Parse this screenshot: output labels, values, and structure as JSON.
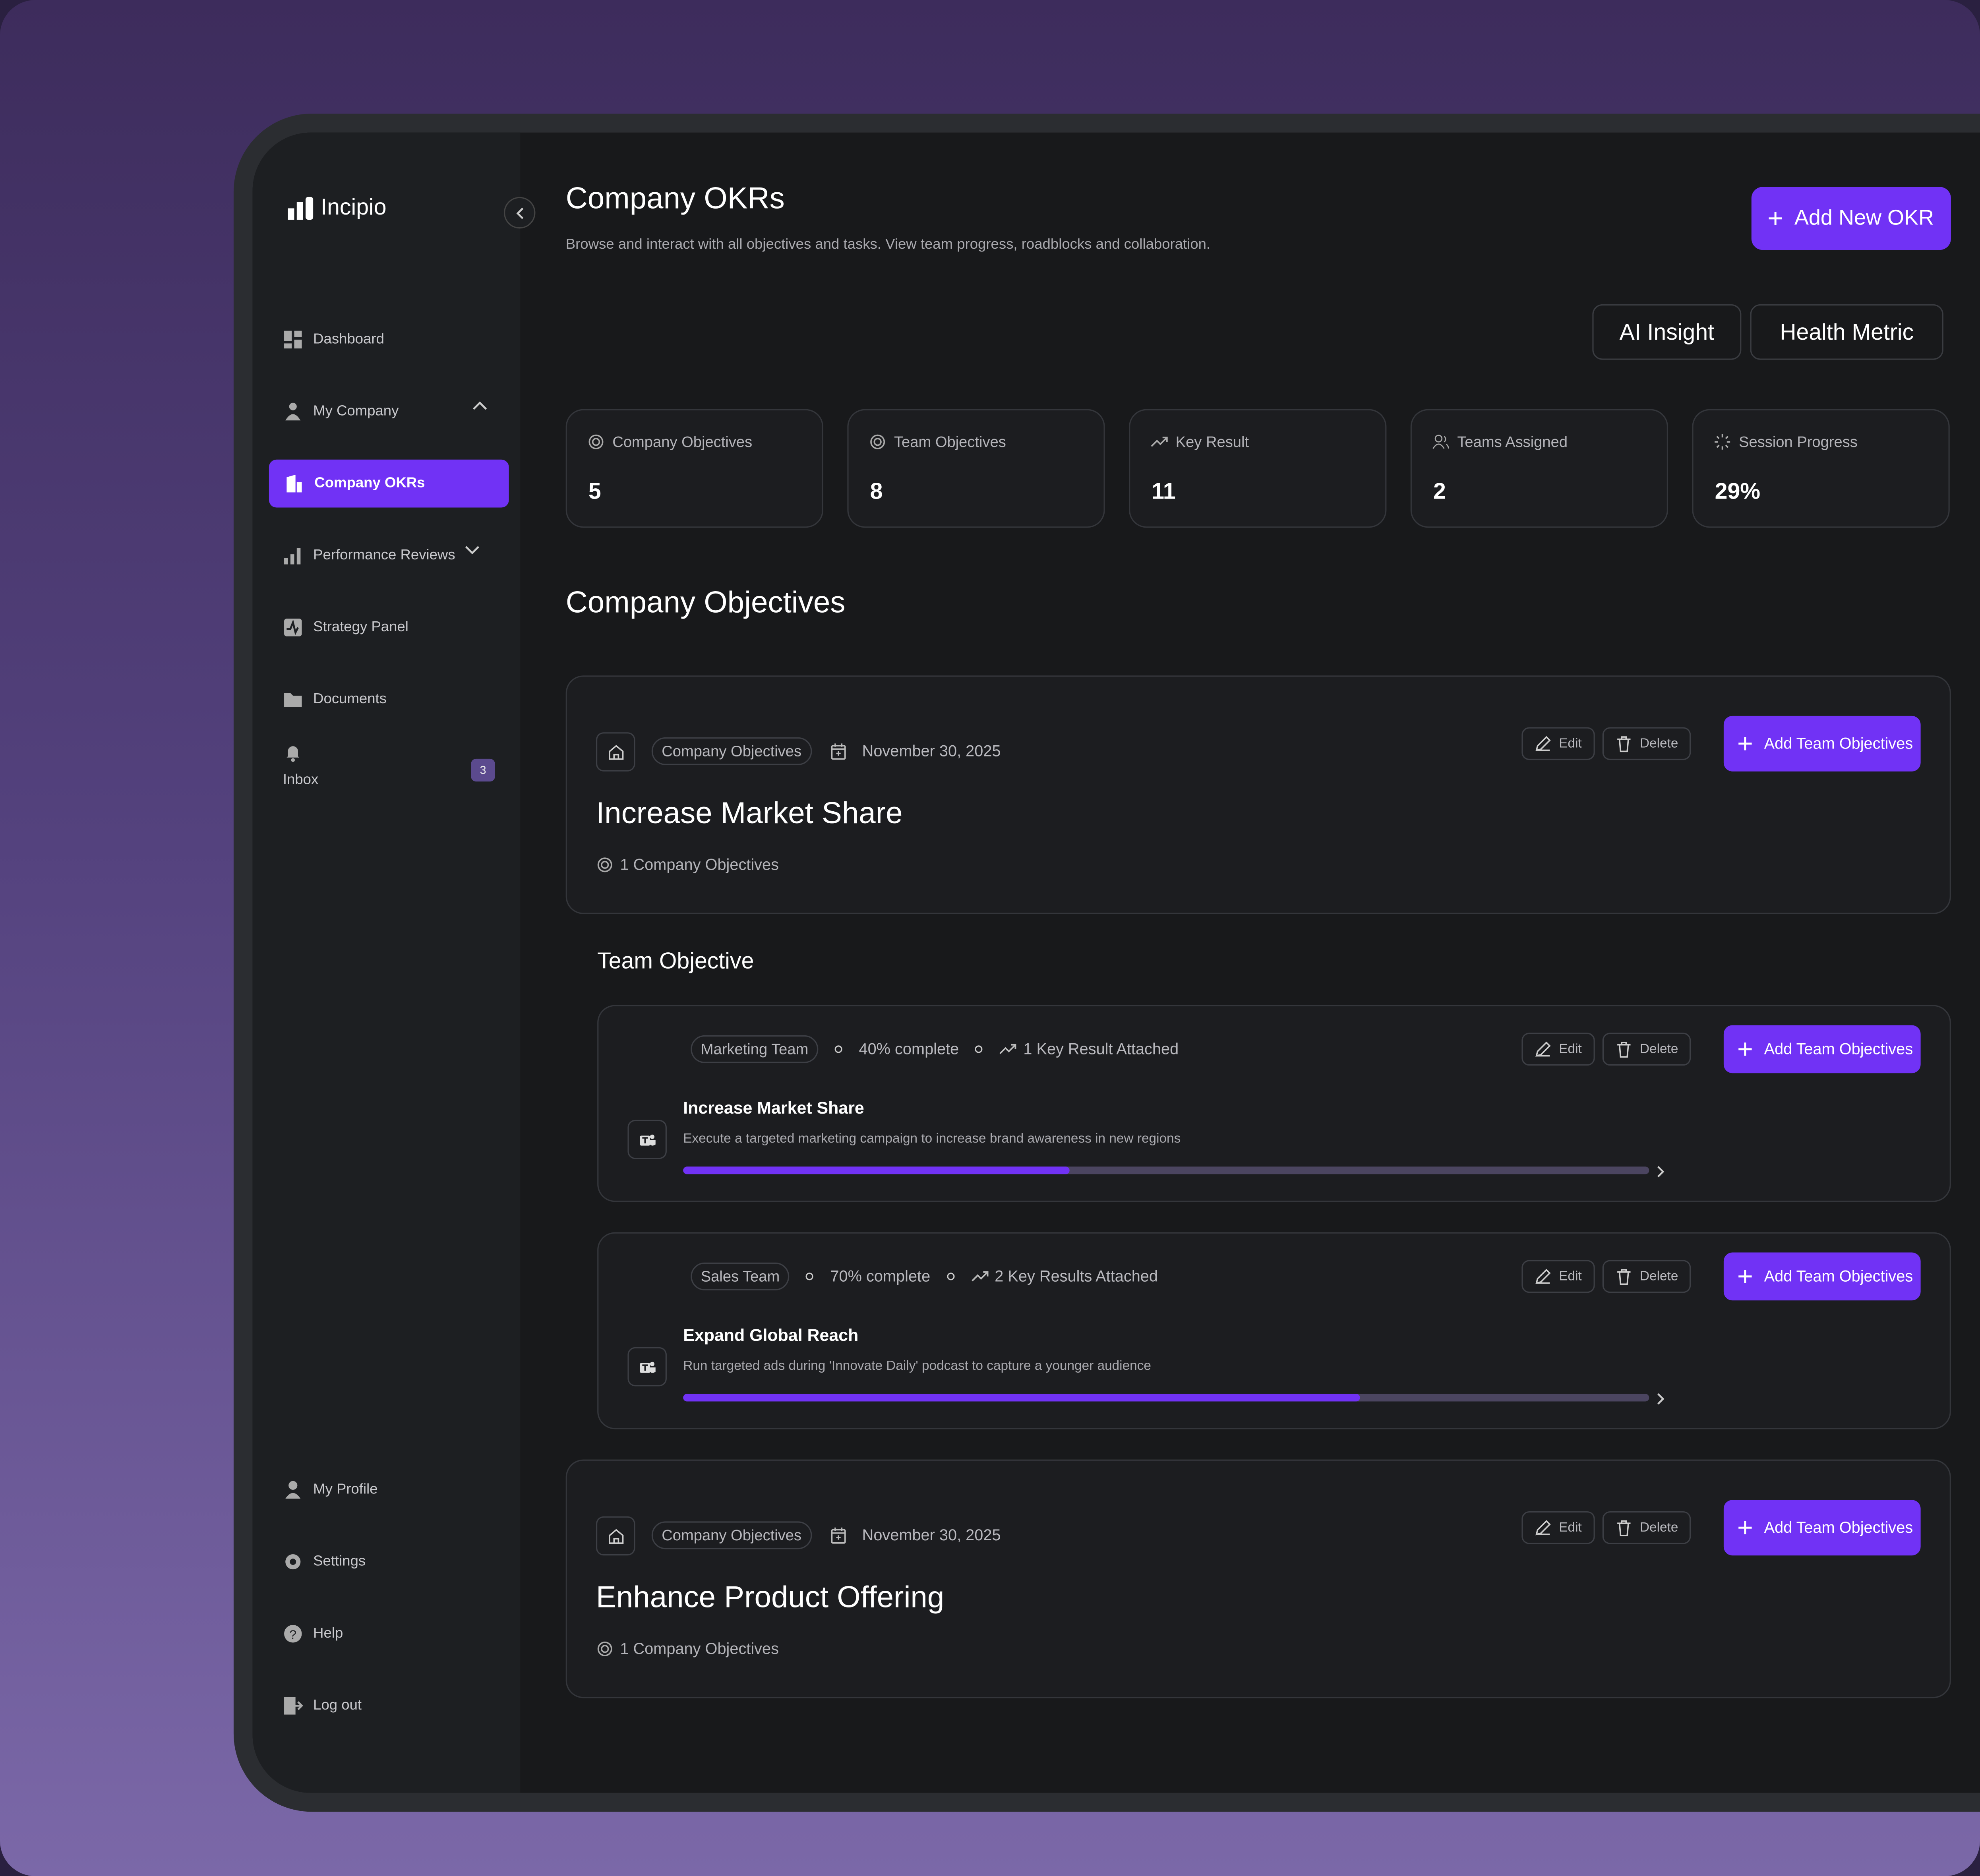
{
  "sidebar": {
    "brand": "Incipio",
    "nav": [
      "Dashboard",
      "My Company",
      "Company OKRs",
      "Performance Reviews",
      "Strategy Panel",
      "Documents",
      "Inbox"
    ],
    "inbox_badge": "3",
    "bottom": [
      "My Profile",
      "Settings",
      "Help",
      "Log out"
    ]
  },
  "header": {
    "title": "Company OKRs",
    "subtitle": "Browse and interact with all objectives and tasks. View team progress, roadblocks and collaboration.",
    "add_button": "Add New OKR",
    "tabs": [
      "AI Insight",
      "Health Metric"
    ]
  },
  "stats": [
    {
      "label": "Company Objectives",
      "value": "5"
    },
    {
      "label": "Team Objectives",
      "value": "8"
    },
    {
      "label": "Key Result",
      "value": "11"
    },
    {
      "label": "Teams Assigned",
      "value": "2"
    },
    {
      "label": "Session Progress",
      "value": "29%"
    }
  ],
  "actions": {
    "edit": "Edit",
    "delete": "Delete",
    "add": "Add Team Objectives"
  },
  "section_title": "Company Objectives",
  "objectives": [
    {
      "tag": "Company Objectives",
      "date": "November 30, 2025",
      "title": "Increase Market Share",
      "count": "1 Company Objectives"
    },
    {
      "tag": "Company Objectives",
      "date": "November 30, 2025",
      "title": "Enhance Product Offering",
      "count": "1 Company Objectives"
    }
  ],
  "team_section_title": "Team Objective",
  "team_objectives": [
    {
      "team": "Marketing Team",
      "progress": {
        "value": 40,
        "label": "40% complete"
      },
      "key_results": "1 Key Result Attached",
      "title": "Increase Market Share",
      "description": "Execute a targeted marketing campaign to increase brand awareness in new regions"
    },
    {
      "team": "Sales Team",
      "progress": {
        "value": 70,
        "label": "70% complete"
      },
      "key_results": "2 Key Results Attached",
      "title": "Expand Global Reach",
      "description": "Run targeted ads during 'Innovate Daily' podcast to capture a younger audience"
    }
  ]
}
